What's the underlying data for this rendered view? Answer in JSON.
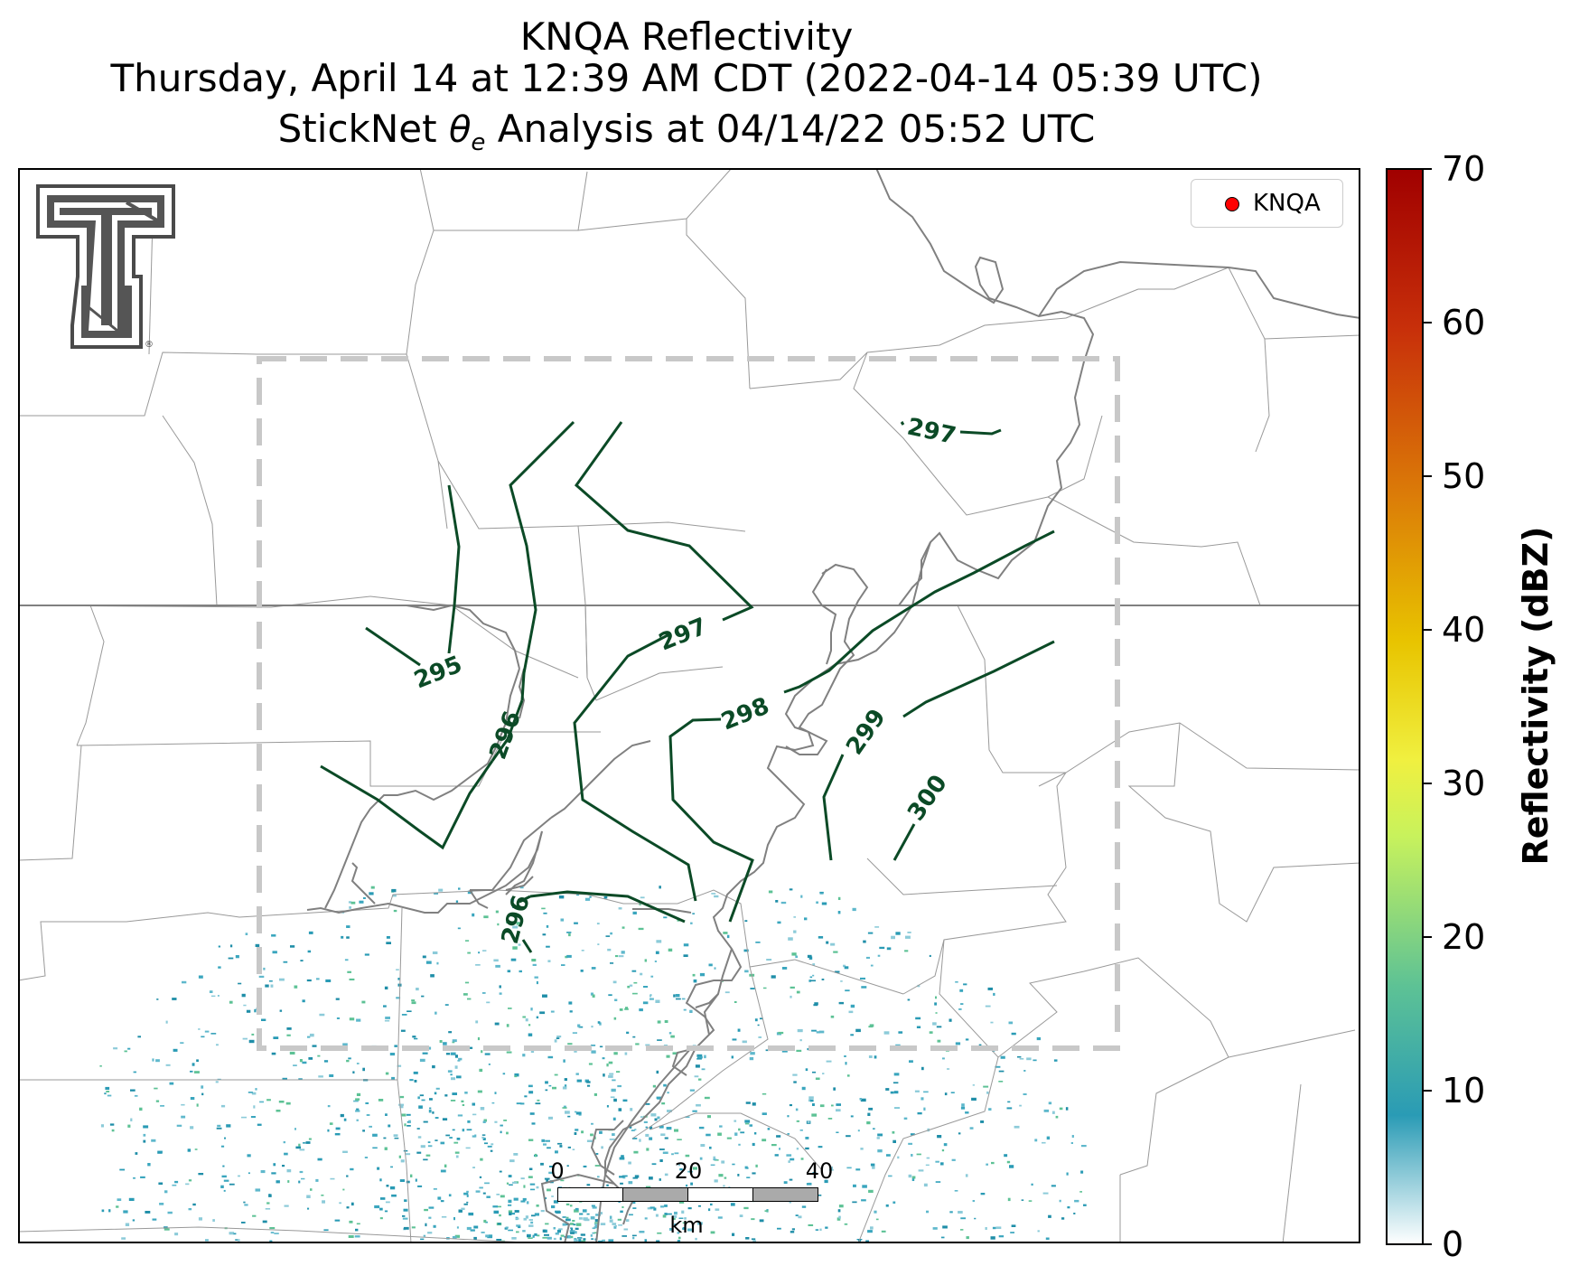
{
  "title": {
    "line1": "KNQA Reflectivity",
    "line2": "Thursday, April 14 at 12:39 AM CDT (2022-04-14 05:39 UTC)",
    "line3_prefix": "StickNet ",
    "line3_symbol": "θ",
    "line3_subscript": "e",
    "line3_suffix": " Analysis at 04/14/22 05:52 UTC"
  },
  "legend": {
    "label": "KNQA",
    "marker_color": "#ff0000"
  },
  "colorbar": {
    "label": "Reflectivity (dBZ)",
    "ticks": [
      "0",
      "10",
      "20",
      "30",
      "40",
      "50",
      "60",
      "70"
    ],
    "range": [
      0,
      70
    ],
    "colors": [
      "#ffffff",
      "#2a9bb5",
      "#5dc295",
      "#c8f25c",
      "#e8c400",
      "#db7a08",
      "#c8300a",
      "#a00000"
    ]
  },
  "contours": {
    "color": "#0b4a26",
    "labels": [
      "295",
      "296",
      "297",
      "298",
      "299",
      "300",
      "296",
      "297"
    ]
  },
  "scalebar": {
    "labels": [
      "0",
      "20",
      "40"
    ],
    "unit": "km"
  },
  "logo": {
    "name": "Texas Tech Double T",
    "trademark": "®"
  },
  "colors": {
    "boundary": "#999999",
    "river": "#808080",
    "analysis_box": "#c8c8c8",
    "echo": "#2a9bb5"
  }
}
